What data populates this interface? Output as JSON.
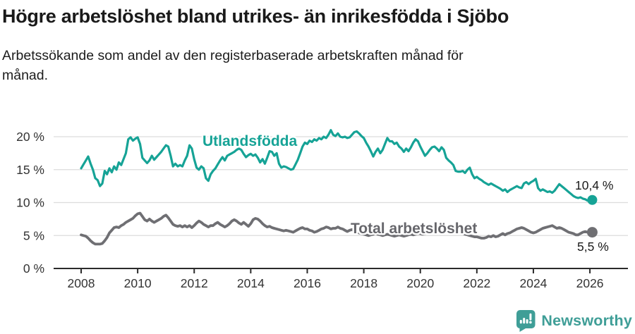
{
  "header": {
    "title": "Högre arbetslöshet bland utrikes- än inrikesfödda i Sjöbo",
    "subtitle": "Arbetssökande som andel av den registerbaserade arbetskraften månad för månad."
  },
  "footer": {
    "brand": "Newsworthy",
    "logo_icon": "bar-chart-speech-bubble-icon"
  },
  "colors": {
    "foreign_born_line": "#16a396",
    "total_line": "#6f6f73",
    "total_label": "#66666b",
    "grid": "#dcdcdc",
    "axis": "#2b2b2b",
    "axis_text": "#333333",
    "annotation_text": "#1a1a1a",
    "logo": "#3f9e97",
    "background": "#ffffff"
  },
  "chart_data": {
    "type": "line",
    "x_unit": "month",
    "x_start": "2008-01",
    "x_end": "2026-02",
    "grid": "horizontal",
    "legend_position": "inline-labels",
    "x_tick_labels": [
      "2008",
      "2010",
      "2012",
      "2014",
      "2016",
      "2018",
      "2020",
      "2022",
      "2024",
      "2026"
    ],
    "y_ticks": [
      0,
      5,
      10,
      15,
      20
    ],
    "y_tick_labels": [
      "0 %",
      "5 %",
      "10 %",
      "15 %",
      "20 %"
    ],
    "ylim": [
      0,
      22
    ],
    "series": [
      {
        "name": "Utlandsfödda",
        "color": "#16a396",
        "end_value": 10.4,
        "end_label": "10,4 %",
        "values": [
          15.2,
          15.8,
          16.4,
          17.0,
          15.9,
          15.0,
          13.7,
          13.4,
          12.5,
          12.9,
          14.8,
          14.3,
          15.2,
          14.6,
          15.5,
          15.0,
          16.1,
          15.7,
          16.6,
          17.5,
          19.6,
          19.9,
          19.4,
          19.7,
          19.9,
          18.9,
          16.8,
          16.4,
          16.0,
          16.4,
          17.1,
          16.5,
          16.9,
          17.3,
          17.7,
          18.2,
          18.7,
          18.5,
          17.1,
          15.5,
          15.9,
          15.5,
          15.7,
          15.5,
          16.4,
          17.1,
          18.7,
          18.2,
          16.6,
          15.3,
          15.0,
          15.5,
          15.2,
          13.7,
          13.3,
          14.3,
          14.8,
          15.2,
          15.8,
          16.4,
          16.9,
          16.4,
          17.1,
          17.3,
          17.5,
          17.7,
          18.0,
          18.2,
          18.0,
          17.4,
          16.9,
          17.2,
          17.4,
          17.1,
          17.3,
          16.8,
          16.1,
          16.6,
          15.9,
          16.8,
          17.8,
          17.7,
          17.1,
          17.5,
          15.9,
          15.3,
          15.5,
          15.4,
          15.2,
          15.0,
          15.1,
          15.8,
          16.5,
          17.5,
          18.5,
          19.1,
          18.9,
          19.4,
          19.2,
          19.6,
          19.4,
          19.8,
          19.6,
          20.0,
          19.8,
          20.3,
          21.0,
          20.3,
          20.1,
          20.5,
          20.0,
          19.9,
          20.0,
          19.8,
          19.9,
          20.3,
          20.7,
          20.8,
          20.5,
          20.1,
          19.8,
          19.1,
          18.5,
          17.8,
          17.0,
          17.7,
          18.2,
          17.5,
          18.0,
          18.9,
          19.8,
          19.3,
          19.3,
          18.9,
          19.1,
          18.5,
          18.2,
          17.7,
          18.2,
          17.8,
          18.4,
          19.1,
          19.6,
          19.3,
          18.5,
          17.8,
          17.1,
          17.5,
          18.0,
          18.4,
          18.5,
          18.2,
          17.8,
          18.4,
          18.0,
          16.8,
          16.4,
          16.1,
          15.7,
          14.8,
          14.7,
          14.7,
          14.8,
          14.5,
          15.0,
          15.3,
          14.3,
          13.7,
          13.9,
          13.6,
          13.4,
          13.1,
          12.9,
          12.7,
          12.9,
          12.7,
          12.5,
          12.3,
          12.1,
          11.8,
          12.0,
          11.6,
          11.9,
          12.1,
          12.3,
          12.5,
          12.3,
          12.2,
          12.9,
          13.1,
          12.8,
          13.1,
          13.3,
          13.6,
          12.2,
          11.8,
          12.0,
          11.8,
          11.6,
          11.7,
          11.5,
          11.8,
          12.3,
          12.8,
          12.5,
          12.2,
          11.9,
          11.6,
          11.3,
          11.0,
          10.8,
          10.7,
          10.8,
          10.6,
          10.5,
          10.3,
          10.4,
          10.4
        ]
      },
      {
        "name": "Total arbetslöshet",
        "color": "#6f6f73",
        "end_value": 5.5,
        "end_label": "5,5 %",
        "values": [
          5.1,
          5.0,
          4.9,
          4.6,
          4.2,
          3.9,
          3.7,
          3.7,
          3.7,
          3.8,
          4.2,
          4.7,
          5.4,
          5.8,
          6.2,
          6.3,
          6.2,
          6.5,
          6.7,
          7.0,
          7.2,
          7.4,
          7.6,
          8.0,
          8.3,
          8.4,
          7.9,
          7.4,
          7.2,
          7.5,
          7.2,
          7.0,
          7.2,
          7.4,
          7.6,
          7.9,
          8.1,
          7.7,
          7.2,
          6.7,
          6.5,
          6.4,
          6.5,
          6.3,
          6.5,
          6.3,
          6.5,
          6.2,
          6.5,
          6.9,
          7.2,
          7.0,
          6.7,
          6.5,
          6.3,
          6.5,
          6.5,
          6.8,
          7.0,
          6.7,
          6.5,
          6.3,
          6.5,
          6.8,
          7.2,
          7.4,
          7.2,
          6.9,
          6.7,
          7.0,
          6.7,
          6.4,
          6.8,
          7.4,
          7.6,
          7.5,
          7.2,
          6.8,
          6.5,
          6.3,
          6.4,
          6.2,
          6.1,
          6.0,
          5.9,
          5.8,
          5.7,
          5.8,
          5.7,
          5.6,
          5.5,
          5.7,
          5.9,
          6.1,
          6.2,
          6.0,
          6.0,
          5.8,
          5.7,
          5.5,
          5.6,
          5.8,
          6.0,
          6.1,
          6.3,
          6.2,
          6.0,
          6.1,
          6.1,
          6.3,
          6.1,
          6.0,
          5.8,
          5.6,
          5.8,
          5.9,
          5.7,
          5.5,
          5.4,
          5.3,
          5.2,
          5.1,
          5.0,
          5.1,
          5.2,
          5.3,
          5.2,
          5.1,
          5.0,
          5.1,
          5.2,
          5.1,
          5.0,
          4.9,
          5.0,
          5.1,
          5.0,
          4.9,
          5.0,
          5.1,
          5.2,
          5.1,
          5.2,
          5.3,
          5.3,
          5.2,
          5.3,
          5.6,
          5.8,
          6.0,
          6.1,
          6.0,
          5.9,
          5.8,
          5.7,
          5.8,
          5.9,
          5.8,
          5.7,
          5.6,
          5.5,
          5.4,
          5.3,
          5.2,
          5.1,
          5.0,
          4.9,
          4.8,
          4.8,
          4.7,
          4.6,
          4.6,
          4.7,
          4.9,
          4.8,
          5.0,
          4.8,
          4.9,
          5.1,
          5.3,
          5.1,
          5.3,
          5.4,
          5.6,
          5.8,
          6.0,
          6.1,
          6.2,
          6.1,
          5.9,
          5.7,
          5.5,
          5.4,
          5.5,
          5.7,
          5.9,
          6.1,
          6.2,
          6.3,
          6.4,
          6.5,
          6.3,
          6.1,
          6.2,
          6.1,
          5.9,
          5.7,
          5.5,
          5.4,
          5.3,
          5.1,
          5.1,
          5.3,
          5.5,
          5.6,
          5.5,
          5.5,
          5.5
        ]
      }
    ]
  }
}
